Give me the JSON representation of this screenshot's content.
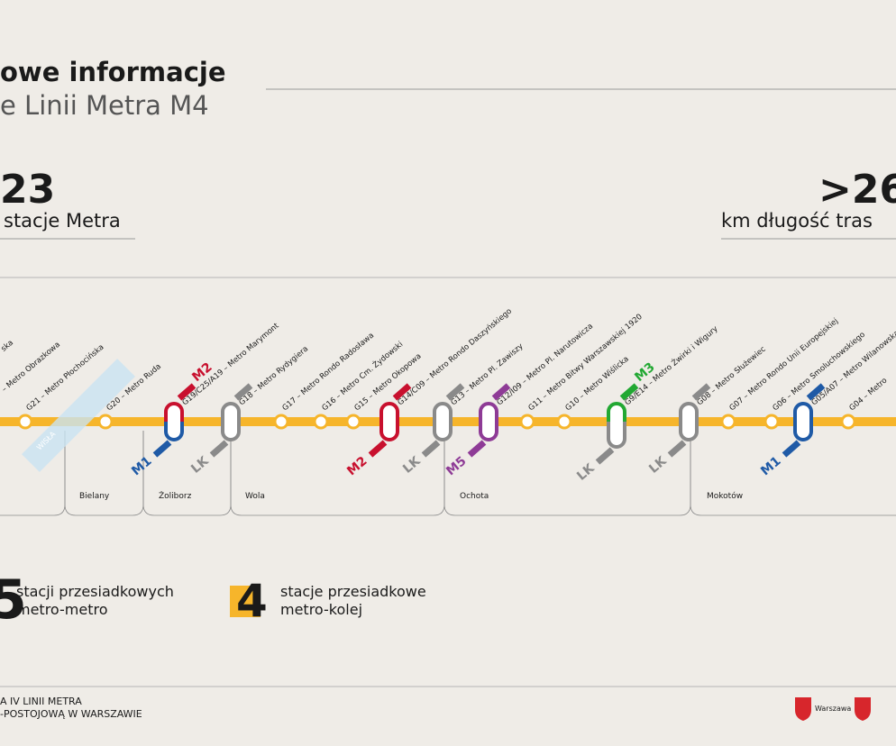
{
  "header": {
    "title_line1": "owe informacje",
    "title_line2": "e Linii Metra M4"
  },
  "stats": [
    {
      "value": "23",
      "label": "stacje Metra"
    },
    {
      "value": ">26",
      "label": "km długość tras"
    }
  ],
  "stations": [
    "ska",
    "– Metro Obrazkowa",
    "G21 – Metro Płochocińska",
    "G20 – Metro Ruda",
    "G19/C25/A19 – Metro Marymont",
    "G18 – Metro Rydygiera",
    "G17 – Metro Rondo Radosława",
    "G16 – Metro Cm. Żydowski",
    "G15 – Metro Okopowa",
    "G14/C09 – Metro Rondo Daszyńskiego",
    "G13 – Metro Pl. Zawiszy",
    "G12/I09 – Metro Pl. Narutowicza",
    "G11 – Metro Bitwy Warszawskiej 1920",
    "G10 – Metro Wiślicka",
    "G9/E14 – Metro Żwirki i Wigury",
    "G08 – Metro Służewiec",
    "G07 – Metro Rondo Unii Europejskiej",
    "G06 – Metro Smoluchowskiego",
    "G05/A07 – Metro Wilanowska",
    "G04 – Metro"
  ],
  "river": "WISŁA",
  "badges": [
    "M2",
    "M1",
    "LK",
    "M2",
    "LK",
    "M5",
    "M3",
    "LK",
    "LK",
    "M1"
  ],
  "districts": [
    "Bielany",
    "Żoliborz",
    "Wola",
    "Ochota",
    "Mokotów"
  ],
  "transfers": [
    {
      "value": "5",
      "line1": "stacji przesiadkowych",
      "line2": "metro-metro"
    },
    {
      "value": "4",
      "line1": "stacje przesiadkowe",
      "line2": "metro-kolej"
    }
  ],
  "footer": {
    "line1": "A IV LINII METRA",
    "line2": "-POSTOJOWĄ W WARSZAWIE",
    "logo": "Warszawa"
  }
}
